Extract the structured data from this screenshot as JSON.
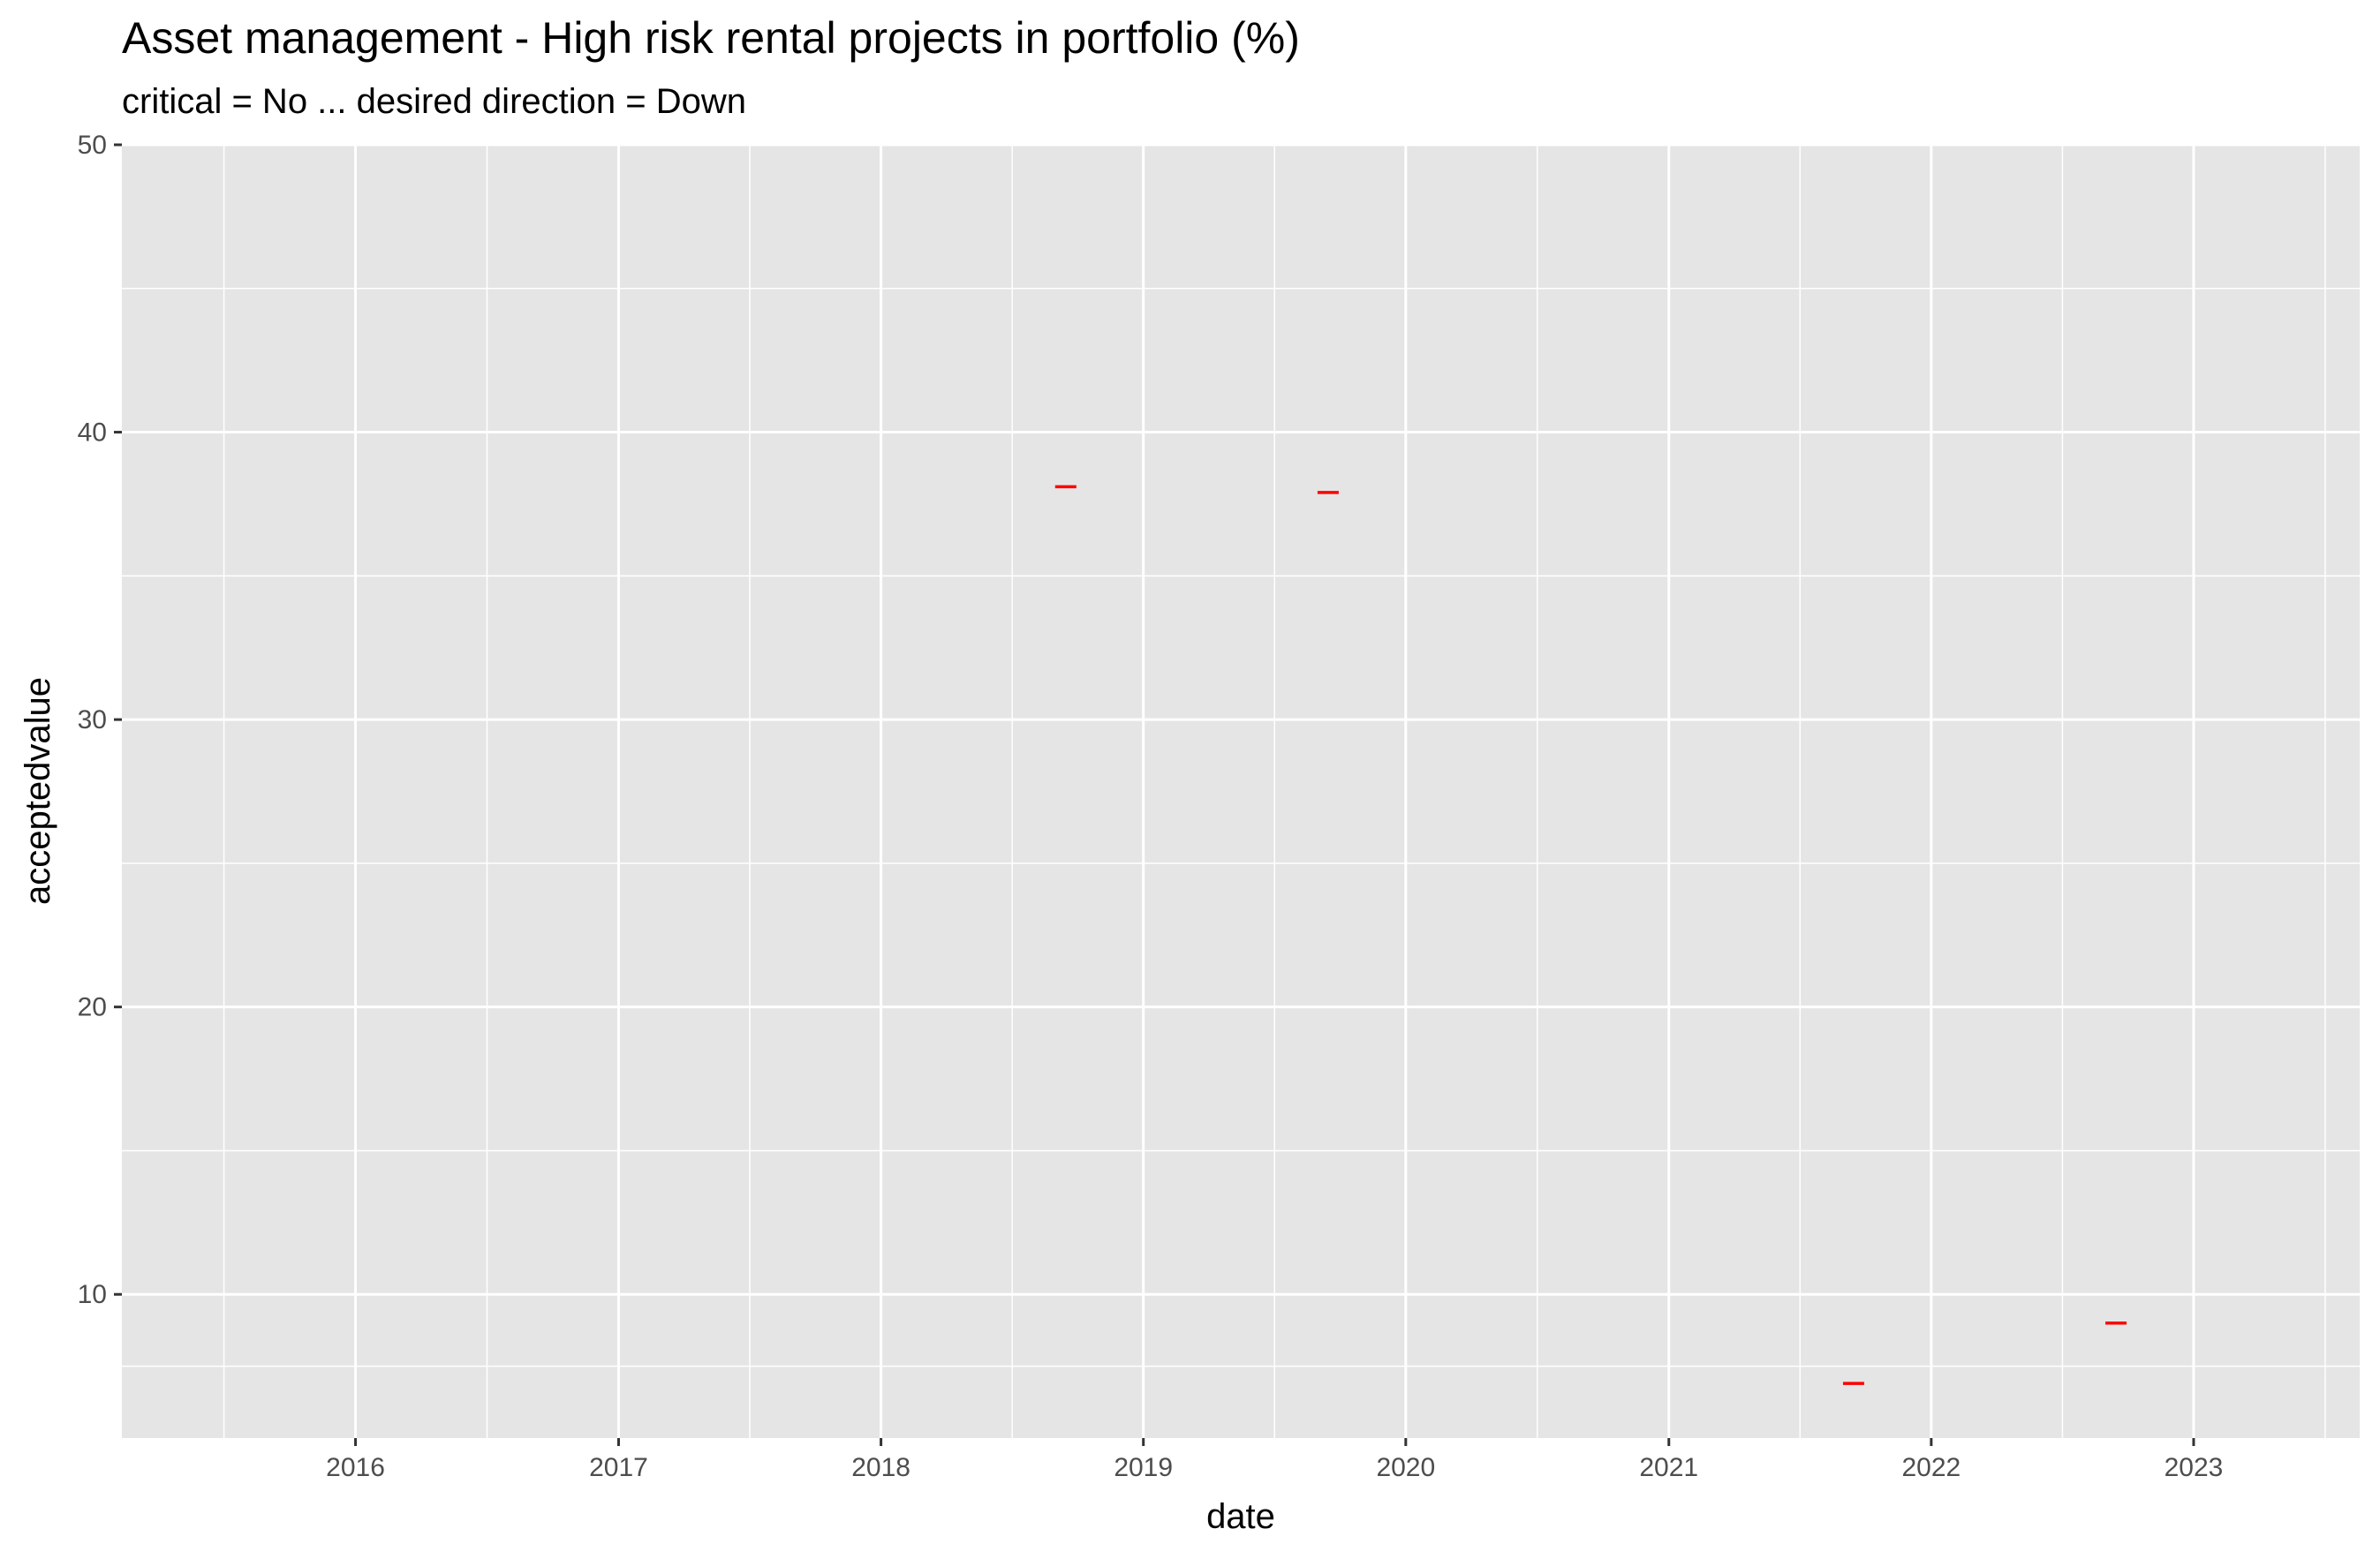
{
  "chart_data": {
    "type": "scatter",
    "marker": "dash",
    "title": "Asset management - High risk rental projects in portfolio (%)",
    "subtitle": "critical = No ... desired direction = Down",
    "xlabel": "date",
    "ylabel": "acceptedvalue",
    "xlim": [
      "2015-02-10",
      "2023-08-20"
    ],
    "ylim": [
      5,
      50
    ],
    "x_ticks": [
      "2016",
      "2017",
      "2018",
      "2019",
      "2020",
      "2021",
      "2022",
      "2023"
    ],
    "y_ticks": [
      "10",
      "20",
      "30",
      "40",
      "50"
    ],
    "grid": true,
    "legend": "none",
    "colors": {
      "panel": "#e5e5e5",
      "grid": "#ffffff",
      "point": "#ff0000"
    },
    "points": [
      {
        "x": "2018-09-15",
        "y": 38.1
      },
      {
        "x": "2019-09-15",
        "y": 37.9
      },
      {
        "x": "2021-09-15",
        "y": 6.9
      },
      {
        "x": "2022-09-15",
        "y": 9.0
      }
    ]
  }
}
